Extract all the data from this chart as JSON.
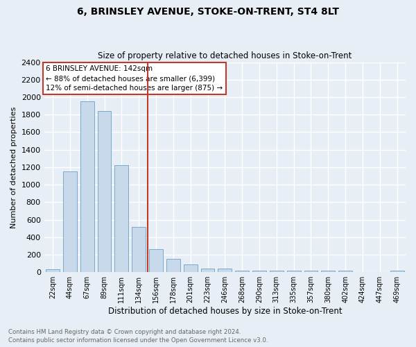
{
  "title": "6, BRINSLEY AVENUE, STOKE-ON-TRENT, ST4 8LT",
  "subtitle": "Size of property relative to detached houses in Stoke-on-Trent",
  "xlabel": "Distribution of detached houses by size in Stoke-on-Trent",
  "ylabel": "Number of detached properties",
  "bin_labels": [
    "22sqm",
    "44sqm",
    "67sqm",
    "89sqm",
    "111sqm",
    "134sqm",
    "156sqm",
    "178sqm",
    "201sqm",
    "223sqm",
    "246sqm",
    "268sqm",
    "290sqm",
    "313sqm",
    "335sqm",
    "357sqm",
    "380sqm",
    "402sqm",
    "424sqm",
    "447sqm",
    "469sqm"
  ],
  "bar_values": [
    30,
    1150,
    1950,
    1840,
    1220,
    520,
    265,
    155,
    85,
    45,
    40,
    20,
    20,
    20,
    20,
    20,
    20,
    20,
    0,
    0,
    20
  ],
  "bar_color": "#c9d9ec",
  "bar_edge_color": "#7aaac8",
  "highlight_bar_index": 5,
  "vline_color": "#c0392b",
  "vline_x_index": 5,
  "ylim": [
    0,
    2400
  ],
  "yticks": [
    0,
    200,
    400,
    600,
    800,
    1000,
    1200,
    1400,
    1600,
    1800,
    2000,
    2200,
    2400
  ],
  "annotation_title": "6 BRINSLEY AVENUE: 142sqm",
  "annotation_line1": "← 88% of detached houses are smaller (6,399)",
  "annotation_line2": "12% of semi-detached houses are larger (875) →",
  "annotation_box_color": "#ffffff",
  "annotation_border_color": "#c0392b",
  "footer1": "Contains HM Land Registry data © Crown copyright and database right 2024.",
  "footer2": "Contains public sector information licensed under the Open Government Licence v3.0.",
  "bg_color": "#e8eef5",
  "grid_color": "#ffffff"
}
